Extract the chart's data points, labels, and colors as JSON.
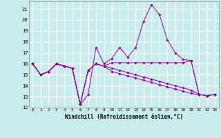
{
  "xlabel": "Windchill (Refroidissement éolien,°C)",
  "xlim": [
    -0.5,
    23.5
  ],
  "ylim": [
    12,
    21.7
  ],
  "yticks": [
    12,
    13,
    14,
    15,
    16,
    17,
    18,
    19,
    20,
    21
  ],
  "xticks": [
    0,
    1,
    2,
    3,
    4,
    5,
    6,
    7,
    8,
    9,
    10,
    11,
    12,
    13,
    14,
    15,
    16,
    17,
    18,
    19,
    20,
    21,
    22,
    23
  ],
  "bg_color": "#c8ecec",
  "grid_color": "#ffffff",
  "line_color": "#990099",
  "series": [
    [
      16.0,
      15.0,
      15.3,
      16.0,
      15.8,
      15.6,
      12.3,
      13.2,
      17.5,
      16.0,
      16.5,
      17.5,
      16.6,
      17.5,
      19.9,
      21.4,
      20.5,
      18.2,
      17.0,
      16.4,
      16.3,
      13.2,
      13.1,
      13.2
    ],
    [
      16.0,
      15.0,
      15.3,
      16.0,
      15.8,
      15.6,
      12.3,
      15.4,
      16.0,
      15.8,
      16.1,
      16.1,
      16.1,
      16.1,
      16.1,
      16.1,
      16.1,
      16.1,
      16.1,
      16.1,
      16.3,
      13.2,
      13.1,
      13.2
    ],
    [
      16.0,
      15.0,
      15.3,
      16.0,
      15.8,
      15.6,
      12.3,
      15.4,
      16.0,
      15.8,
      15.6,
      15.4,
      15.2,
      15.0,
      14.8,
      14.6,
      14.4,
      14.2,
      14.0,
      13.8,
      13.6,
      13.2,
      13.1,
      13.2
    ],
    [
      16.0,
      15.0,
      15.3,
      16.0,
      15.8,
      15.6,
      12.3,
      15.4,
      16.0,
      15.8,
      15.3,
      15.1,
      14.9,
      14.7,
      14.5,
      14.3,
      14.1,
      13.9,
      13.7,
      13.5,
      13.3,
      13.2,
      13.1,
      13.2
    ]
  ]
}
